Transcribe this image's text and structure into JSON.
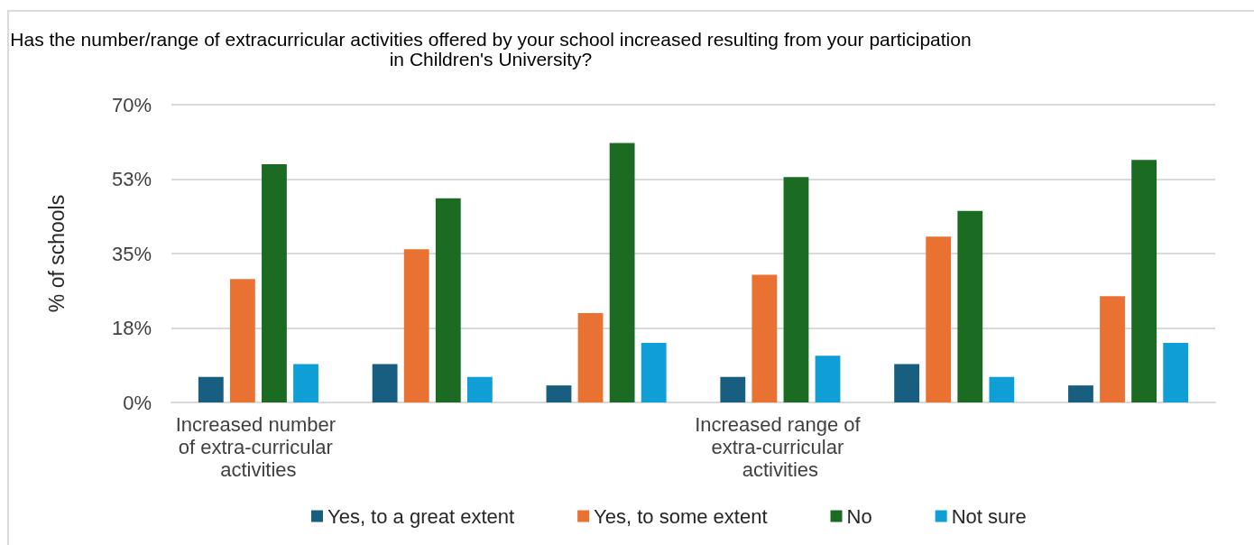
{
  "chart_data": {
    "type": "bar",
    "title": "Has the number/range of extracurricular activities offered by your school increased resulting from your participation in Children's University?",
    "ylabel": "% of schools",
    "categories": [
      "Increased number of extra-curricular activities",
      null,
      null,
      "Increased range of extra-curricular activities",
      null,
      null
    ],
    "series": [
      {
        "name": "Yes, to a great extent",
        "color": "#175e80",
        "values": [
          6,
          9,
          4,
          6,
          9,
          4
        ]
      },
      {
        "name": "Yes, to some extent",
        "color": "#e97132",
        "values": [
          29,
          36,
          21,
          30,
          39,
          25
        ]
      },
      {
        "name": "No",
        "color": "#1b6b23",
        "values": [
          56,
          48,
          61,
          53,
          45,
          57
        ]
      },
      {
        "name": "Not sure",
        "color": "#0f9fd6",
        "values": [
          9,
          6,
          14,
          11,
          6,
          14
        ]
      }
    ],
    "ylim": [
      0,
      70
    ],
    "yticks": [
      {
        "value": 0,
        "label": "0%"
      },
      {
        "value": 17.5,
        "label": "18%"
      },
      {
        "value": 35,
        "label": "35%"
      },
      {
        "value": 52.5,
        "label": "53%"
      },
      {
        "value": 70,
        "label": "70%"
      }
    ],
    "grid": "y",
    "legend": "bottom"
  }
}
